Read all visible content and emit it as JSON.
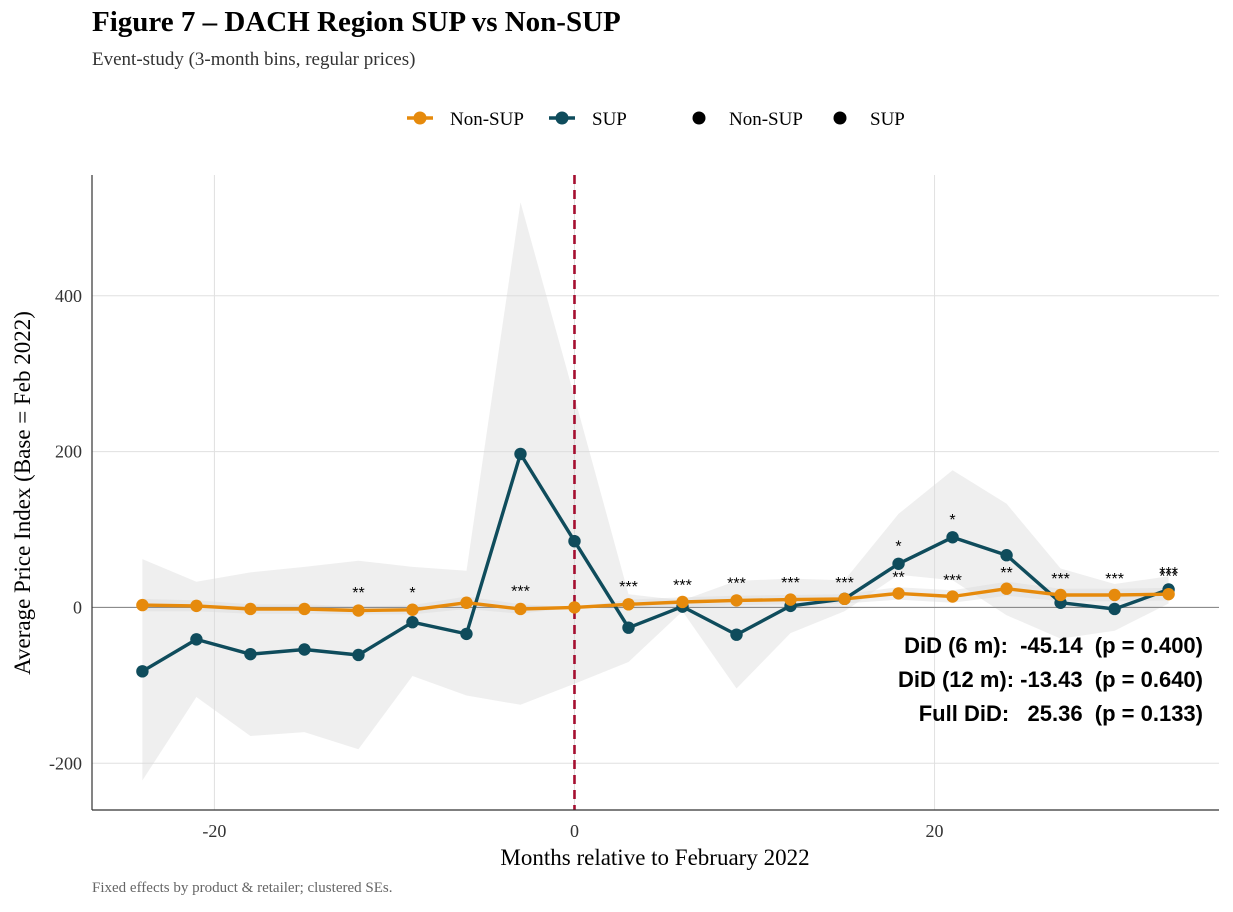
{
  "chart_data": {
    "type": "line",
    "title": "Figure 7 – DACH Region SUP vs Non-SUP",
    "subtitle": "Event-study (3-month bins, regular prices)",
    "caption": "Fixed effects by product & retailer; clustered SEs.",
    "xlabel": "Months relative to February 2022",
    "ylabel": "Average Price Index (Base = Feb 2022)",
    "xlim": [
      -26.8,
      35.8
    ],
    "ylim": [
      -260,
      555
    ],
    "xticks": [
      -20,
      0,
      20
    ],
    "xtick_labels": [
      "-20",
      "0",
      "20"
    ],
    "yticks": [
      -200,
      0,
      200,
      400
    ],
    "ytick_labels": [
      "-200",
      "0",
      "200",
      "400"
    ],
    "event_line_x": 0,
    "legend": {
      "lines": [
        {
          "label": "Non-SUP",
          "color": "#E68A0C"
        },
        {
          "label": "SUP",
          "color": "#0F4C5C"
        }
      ],
      "points": [
        {
          "label": "Non-SUP",
          "color": "#000000"
        },
        {
          "label": "SUP",
          "color": "#000000"
        }
      ]
    },
    "x": [
      -24,
      -21,
      -18,
      -15,
      -12,
      -9,
      -6,
      -3,
      0,
      3,
      6,
      9,
      12,
      15,
      18,
      21,
      24,
      27,
      30,
      33
    ],
    "series": [
      {
        "name": "Non-SUP",
        "color": "#E68A0C",
        "values": [
          3,
          2,
          -2,
          -2,
          -4,
          -3,
          6,
          -2,
          0,
          4,
          7,
          9,
          10,
          11,
          18,
          14,
          24,
          16,
          16,
          17
        ],
        "ci_lower": [
          -5,
          -5,
          -8,
          -8,
          -9,
          -9,
          -2,
          -8,
          0,
          -2,
          1,
          3,
          4,
          5,
          10,
          6,
          15,
          8,
          8,
          9
        ],
        "ci_upper": [
          11,
          9,
          4,
          4,
          1,
          3,
          14,
          4,
          0,
          10,
          13,
          15,
          16,
          17,
          26,
          22,
          33,
          24,
          24,
          25
        ]
      },
      {
        "name": "SUP",
        "color": "#0F4C5C",
        "values": [
          -82,
          -41,
          -60,
          -54,
          -61,
          -19,
          -34,
          197,
          85,
          -26,
          1,
          -35,
          2,
          11,
          56,
          90,
          67,
          6,
          -2,
          23
        ],
        "ci_lower": [
          -222,
          -115,
          -165,
          -160,
          -182,
          -88,
          -113,
          -125,
          -98,
          -70,
          -5,
          -104,
          -33,
          -5,
          42,
          35,
          -10,
          -40,
          -30,
          5
        ],
        "ci_upper": [
          62,
          33,
          45,
          52,
          60,
          52,
          47,
          520,
          270,
          17,
          9,
          34,
          37,
          35,
          120,
          176,
          133,
          50,
          30,
          40
        ]
      }
    ],
    "significance": [
      {
        "x": -12,
        "y": 12,
        "label": "**"
      },
      {
        "x": -9,
        "y": 12,
        "label": "*"
      },
      {
        "x": -3,
        "y": 14,
        "label": "***"
      },
      {
        "x": 3,
        "y": 20,
        "label": "***"
      },
      {
        "x": 6,
        "y": 22,
        "label": "***"
      },
      {
        "x": 9,
        "y": 24,
        "label": "***"
      },
      {
        "x": 12,
        "y": 25,
        "label": "***"
      },
      {
        "x": 15,
        "y": 25,
        "label": "***"
      },
      {
        "x": 18,
        "y": 32,
        "label": "**"
      },
      {
        "x": 18,
        "y": 72,
        "label": "*"
      },
      {
        "x": 21,
        "y": 28,
        "label": "***"
      },
      {
        "x": 21,
        "y": 106,
        "label": "*"
      },
      {
        "x": 24,
        "y": 38,
        "label": "**"
      },
      {
        "x": 27,
        "y": 30,
        "label": "***"
      },
      {
        "x": 30,
        "y": 30,
        "label": "***"
      },
      {
        "x": 33,
        "y": 33,
        "label": "***"
      },
      {
        "x": 33,
        "y": 38,
        "label": "***"
      }
    ],
    "annotations": [
      "DiD (6 m):  -45.14  (p = 0.400)",
      "DiD (12 m): -13.43  (p = 0.640)",
      "Full DiD:   25.36  (p = 0.133)"
    ]
  }
}
